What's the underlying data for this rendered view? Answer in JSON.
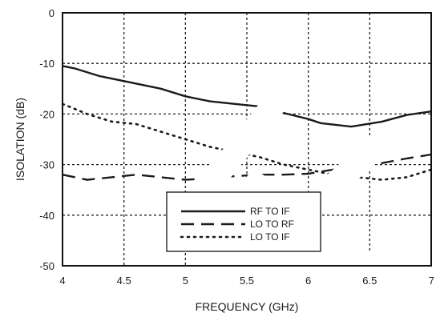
{
  "chart_data": {
    "type": "line",
    "title": "",
    "xlabel": "FREQUENCY (GHz)",
    "ylabel": "ISOLATION (dB)",
    "xlim": [
      4,
      7
    ],
    "ylim": [
      -50,
      0
    ],
    "x_ticks": [
      "4",
      "4.5",
      "5",
      "5.5",
      "6",
      "6.5",
      "7"
    ],
    "y_ticks": [
      "0",
      "-10",
      "-20",
      "-30",
      "-40",
      "-50"
    ],
    "grid": true,
    "legend_position": "bottom-center",
    "series": [
      {
        "name": "RF TO IF",
        "style": "solid",
        "color": "#1a1a1a",
        "x": [
          4.0,
          4.1,
          4.3,
          4.5,
          4.8,
          5.0,
          5.2,
          5.4,
          5.6,
          5.8,
          6.0,
          6.1,
          6.35,
          6.6,
          6.8,
          7.0
        ],
        "y": [
          -10.5,
          -11.0,
          -12.5,
          -13.5,
          -15.0,
          -16.5,
          -17.5,
          -18.0,
          -18.5,
          -19.8,
          -21.0,
          -21.8,
          -22.5,
          -21.5,
          -20.2,
          -19.5
        ]
      },
      {
        "name": "LO TO RF",
        "style": "dashed",
        "color": "#1a1a1a",
        "x": [
          4.0,
          4.2,
          4.4,
          4.6,
          4.8,
          5.0,
          5.2,
          5.4,
          5.6,
          5.8,
          6.0,
          6.2,
          6.4,
          6.6,
          6.8,
          7.0
        ],
        "y": [
          -32.0,
          -33.0,
          -32.5,
          -32.0,
          -32.5,
          -33.0,
          -32.7,
          -32.3,
          -32.0,
          -32.0,
          -31.8,
          -31.0,
          -30.3,
          -29.7,
          -28.8,
          -28.0
        ]
      },
      {
        "name": "LO TO IF",
        "style": "dotted",
        "color": "#1a1a1a",
        "x": [
          4.0,
          4.2,
          4.4,
          4.6,
          4.8,
          5.0,
          5.2,
          5.4,
          5.6,
          5.8,
          6.0,
          6.2,
          6.4,
          6.6,
          6.8,
          7.0
        ],
        "y": [
          -18.0,
          -20.0,
          -21.5,
          -22.0,
          -23.5,
          -25.0,
          -26.5,
          -27.5,
          -28.5,
          -30.0,
          -31.0,
          -32.0,
          -32.5,
          -33.0,
          -32.5,
          -31.0
        ]
      }
    ]
  },
  "decor": {
    "watermark_color": "#ffffff"
  }
}
